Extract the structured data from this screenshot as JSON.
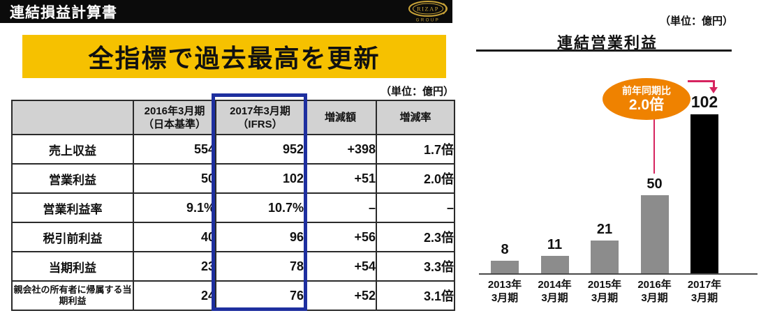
{
  "header": {
    "title": "連結損益計算書",
    "logo_brand": "RIZAP",
    "logo_sub": "GROUP"
  },
  "banner": {
    "text": "全指標で過去最高を更新"
  },
  "table_section": {
    "unit_label": "（単位：億円）",
    "table": {
      "col_headers": {
        "item": "",
        "y2016_line1": "2016年3月期",
        "y2016_line2": "（日本基準）",
        "y2017_line1": "2017年3月期",
        "y2017_line2": "（IFRS）",
        "diff": "増減額",
        "ratio": "増減率"
      },
      "rows": [
        {
          "label": "売上収益",
          "y2016": "554",
          "y2017": "952",
          "diff": "+398",
          "ratio": "1.7倍"
        },
        {
          "label": "営業利益",
          "y2016": "50",
          "y2017": "102",
          "diff": "+51",
          "ratio": "2.0倍"
        },
        {
          "label": "営業利益率",
          "y2016": "9.1%",
          "y2017": "10.7%",
          "diff": "–",
          "ratio": "–"
        },
        {
          "label": "税引前利益",
          "y2016": "40",
          "y2017": "96",
          "diff": "+56",
          "ratio": "2.3倍"
        },
        {
          "label": "当期利益",
          "y2016": "23",
          "y2017": "78",
          "diff": "+54",
          "ratio": "3.3倍"
        },
        {
          "label": "親会社の所有者に帰属する当期利益",
          "y2016": "24",
          "y2017": "76",
          "diff": "+52",
          "ratio": "3.1倍"
        }
      ],
      "highlight_column": "2017年3月期（IFRS）",
      "highlight_color": "#1e2f9f"
    }
  },
  "chart_section": {
    "unit_label": "（単位：億円）",
    "callout": {
      "line1": "前年同期比",
      "line2": "2.0倍",
      "fill_color": "#ef8200",
      "arrow_color": "#d6245f"
    }
  },
  "chart_data": {
    "type": "bar",
    "title": "連結営業利益",
    "unit": "億円",
    "categories": [
      "2013年3月期",
      "2014年3月期",
      "2015年3月期",
      "2016年3月期",
      "2017年3月期"
    ],
    "values": [
      8,
      11,
      21,
      50,
      102
    ],
    "bar_colors": [
      "#8c8c8c",
      "#8c8c8c",
      "#8c8c8c",
      "#8c8c8c",
      "#000000"
    ],
    "highlight_index": 4,
    "annotation": "前年同期比2.0倍",
    "ylim": [
      0,
      110
    ],
    "grid": false,
    "legend": false
  },
  "colors": {
    "banner_yellow": "#f6c100",
    "highlight_blue": "#1e2f9f",
    "callout_orange": "#ef8200",
    "arrow_pink": "#d6245f",
    "bar_gray": "#8c8c8c",
    "bar_black": "#000000",
    "table_header_gray": "#d2d2d2",
    "logo_gold": "#c9a338"
  }
}
